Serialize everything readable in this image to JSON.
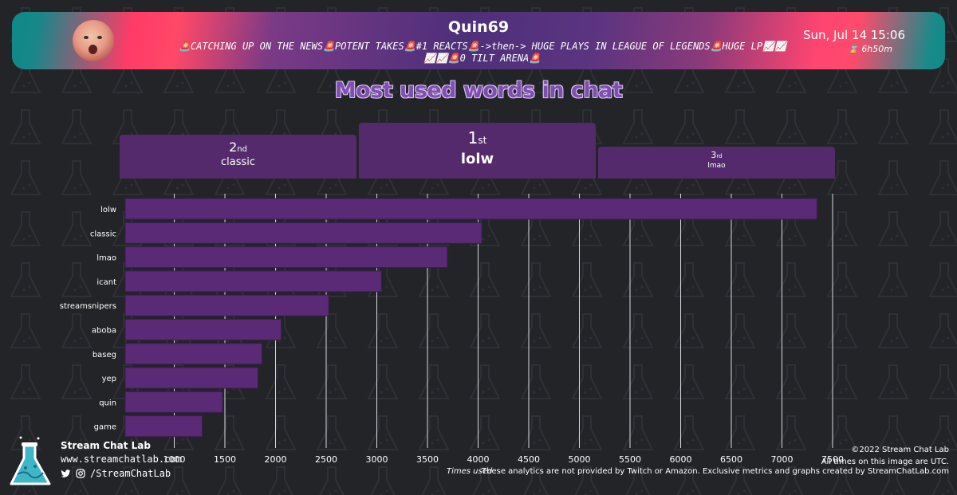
{
  "header": {
    "channel_name": "Quin69",
    "stream_title": "🚨CATCHING UP ON THE NEWS🚨POTENT TAKES🚨#1 REACTS🚨->then-> HUGE PLAYS IN LEAGUE OF LEGENDS🚨HUGE LP📈📈📈📈🚨0 TILT ARENA🚨",
    "datetime": "Sun, Jul 14 15:06",
    "duration": "6h50m",
    "duration_icon": "hourglass-icon"
  },
  "podium": {
    "first": {
      "rank": "1",
      "suffix": "st",
      "word": "lolw"
    },
    "second": {
      "rank": "2",
      "suffix": "nd",
      "word": "classic"
    },
    "third": {
      "rank": "3",
      "suffix": "rd",
      "word": "lmao"
    }
  },
  "chart_data": {
    "type": "bar",
    "orientation": "horizontal",
    "title": "Most used words in chat",
    "xlabel": "Times used",
    "ylabel": "",
    "categories": [
      "lolw",
      "classic",
      "lmao",
      "icant",
      "streamsnipers",
      "aboba",
      "baseg",
      "yep",
      "quin",
      "game"
    ],
    "values": [
      7330,
      4020,
      3680,
      3030,
      2510,
      2040,
      1850,
      1810,
      1460,
      1260
    ],
    "xlim": [
      500,
      7500
    ],
    "xticks": [
      1000,
      1500,
      2000,
      2500,
      3000,
      3500,
      4000,
      4500,
      5000,
      5500,
      6000,
      6500,
      7000,
      7500
    ],
    "grid": true,
    "bar_color": "#5a2a76",
    "title_color": "#7f4eb0"
  },
  "footer": {
    "brand_name": "Stream Chat Lab",
    "brand_url": "www.streamchatlab.com",
    "social_handle": "/StreamChatLab",
    "social_icons": [
      "twitter-icon",
      "instagram-icon"
    ],
    "copyright": "©2022 Stream Chat Lab",
    "timezone_note": "All times on this image are UTC.",
    "disclaimer": "These analytics are not provided by Twitch or Amazon. Exclusive metrics and graphs created by StreamChatLab.com"
  }
}
